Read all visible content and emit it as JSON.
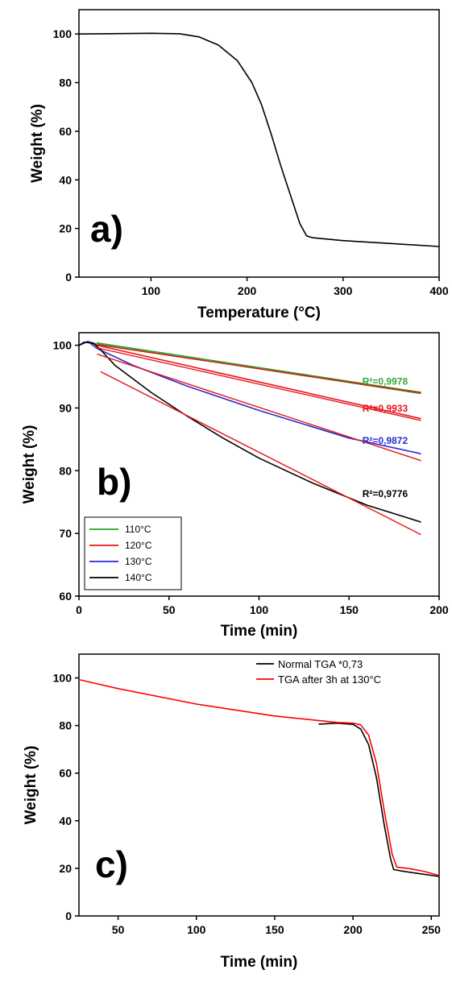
{
  "chart_data": [
    {
      "type": "line",
      "panel_label": "a)",
      "xlabel": "Temperature (°C)",
      "ylabel": "Weight (%)",
      "xlim": [
        25,
        400
      ],
      "ylim": [
        0,
        110
      ],
      "xticks": [
        100,
        200,
        300,
        400
      ],
      "yticks": [
        0,
        20,
        40,
        60,
        80,
        100
      ],
      "grid": false,
      "series": [
        {
          "color": "#000000",
          "x": [
            25,
            100,
            130,
            150,
            170,
            190,
            205,
            215,
            225,
            235,
            245,
            255,
            262,
            268,
            300,
            350,
            400
          ],
          "y": [
            100,
            100.3,
            100.1,
            98.8,
            95.5,
            89,
            80,
            71,
            59,
            46,
            34,
            22,
            17,
            16.2,
            15,
            13.8,
            12.6
          ]
        }
      ]
    },
    {
      "type": "line",
      "panel_label": "b)",
      "xlabel": "Time (min)",
      "ylabel": "Weight (%)",
      "xlim": [
        0,
        200
      ],
      "ylim": [
        60,
        102
      ],
      "xticks": [
        0,
        50,
        100,
        150,
        200
      ],
      "yticks": [
        60,
        70,
        80,
        90,
        100
      ],
      "grid": false,
      "legend_position": "bottom-left",
      "series": [
        {
          "name": "110°C",
          "color": "#2aa12a",
          "x": [
            0,
            5,
            10,
            190
          ],
          "y": [
            100,
            100.6,
            100.2,
            92.3
          ]
        },
        {
          "name": "120°C",
          "color": "#e8141a",
          "x": [
            0,
            5,
            10,
            190
          ],
          "y": [
            100,
            100.6,
            100,
            88.3
          ]
        },
        {
          "name": "130°C",
          "color": "#2a2ad0",
          "x": [
            0,
            5,
            10,
            30,
            60,
            100,
            150,
            190
          ],
          "y": [
            100,
            100.6,
            99.5,
            96.8,
            93.5,
            89.6,
            85.2,
            82.7
          ]
        },
        {
          "name": "140°C",
          "color": "#000000",
          "x": [
            0,
            3,
            8,
            12,
            20,
            40,
            60,
            80,
            100,
            130,
            160,
            190
          ],
          "y": [
            100,
            100.5,
            100.3,
            99.3,
            96.8,
            92.5,
            88.7,
            85.2,
            82,
            78,
            74.5,
            71.8
          ]
        }
      ],
      "fits": [
        {
          "color": "#2aa12a",
          "x": [
            10,
            190
          ],
          "y": [
            100.4,
            92.5
          ]
        },
        {
          "color": "#e8141a",
          "x": [
            10,
            190
          ],
          "y": [
            100.1,
            92.4
          ]
        },
        {
          "color": "#e8141a",
          "x": [
            10,
            190
          ],
          "y": [
            99.6,
            88.0
          ]
        },
        {
          "color": "#e8141a",
          "x": [
            10,
            190
          ],
          "y": [
            98.6,
            81.6
          ]
        },
        {
          "color": "#e8141a",
          "x": [
            12,
            190
          ],
          "y": [
            95.8,
            69.8
          ]
        }
      ],
      "annotations": [
        {
          "text": "R²=0,9978",
          "color": "#3aa53a",
          "x": 170,
          "y": 93.7
        },
        {
          "text": "R²=0,9933",
          "color": "#e8141a",
          "x": 170,
          "y": 89.4
        },
        {
          "text": "R²=0,9872",
          "color": "#2a2ad0",
          "x": 170,
          "y": 84.3
        },
        {
          "text": "R²=0,9776",
          "color": "#000000",
          "x": 170,
          "y": 75.8
        }
      ]
    },
    {
      "type": "line",
      "panel_label": "c)",
      "xlabel": "Time (min)",
      "ylabel": "Weight (%)",
      "xlim": [
        25,
        255
      ],
      "ylim": [
        0,
        110
      ],
      "xticks": [
        50,
        100,
        150,
        200,
        250
      ],
      "yticks": [
        0,
        20,
        40,
        60,
        80,
        100
      ],
      "grid": false,
      "legend_position": "top-right",
      "series": [
        {
          "name": "Normal TGA *0,73",
          "color": "#000000",
          "x": [
            178,
            190,
            200,
            205,
            210,
            215,
            220,
            224,
            226,
            230,
            240,
            255
          ],
          "y": [
            80.6,
            81,
            80.5,
            78.5,
            72,
            58,
            38,
            24,
            19.5,
            19,
            18,
            16.6
          ]
        },
        {
          "name": "TGA after 3h at 130°C",
          "color": "#ff0000",
          "x": [
            25,
            50,
            100,
            150,
            190,
            200,
            205,
            210,
            215,
            220,
            225,
            228,
            235,
            245,
            255
          ],
          "y": [
            99.3,
            95.5,
            89,
            84,
            81.3,
            81,
            80.3,
            76,
            64,
            44,
            26,
            20.5,
            20,
            18.8,
            17
          ]
        }
      ]
    }
  ]
}
